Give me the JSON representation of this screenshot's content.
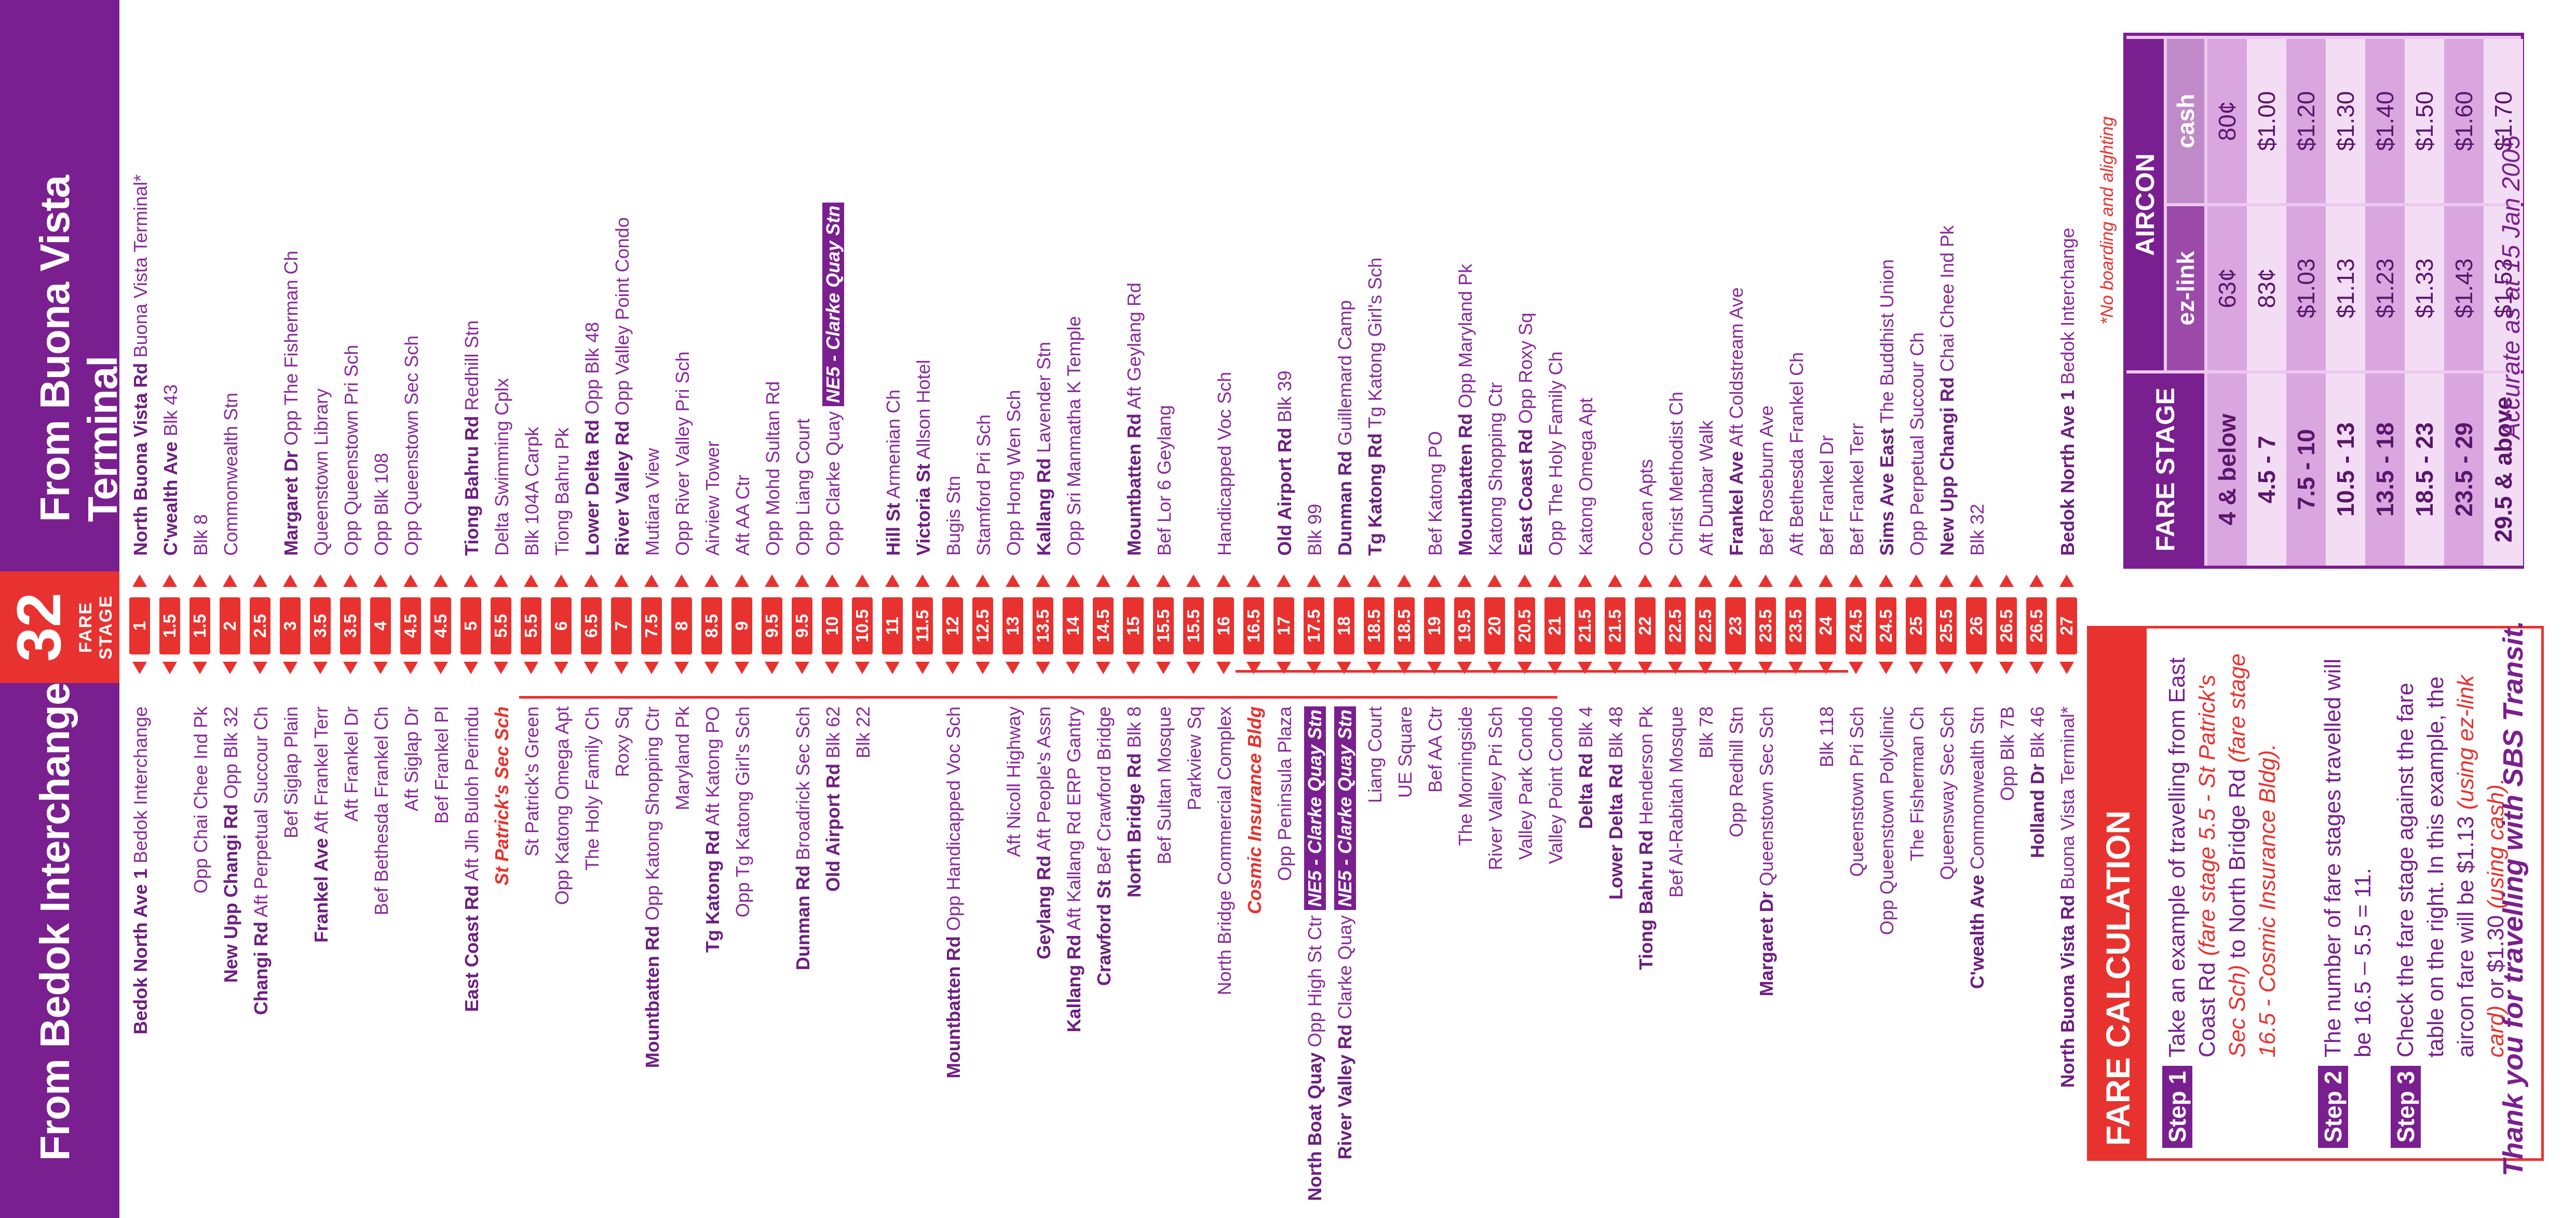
{
  "header": {
    "left_title": "From Bedok Interchange",
    "right_title": "From Buona Vista Terminal",
    "route_number": "32",
    "fare_stage_label": "FARE STAGE"
  },
  "rows": [
    {
      "stage": "1",
      "left": [
        {
          "b": "Bedok North Ave 1"
        },
        {
          "t": " Bedok Interchange"
        }
      ],
      "right": [
        {
          "b": "North Buona Vista Rd"
        },
        {
          "t": " Buona Vista Terminal*"
        }
      ]
    },
    {
      "stage": "1.5",
      "left": [],
      "right": [
        {
          "b": "C'wealth Ave"
        },
        {
          "t": " Blk 43"
        }
      ]
    },
    {
      "stage": "1.5",
      "left": [
        {
          "t": "Opp Chai Chee Ind Pk"
        }
      ],
      "right": [
        {
          "t": "Blk 8"
        }
      ]
    },
    {
      "stage": "2",
      "left": [
        {
          "b": "New Upp Changi Rd"
        },
        {
          "t": " Opp Blk 32"
        }
      ],
      "right": [
        {
          "t": "Commonwealth Stn"
        }
      ]
    },
    {
      "stage": "2.5",
      "left": [
        {
          "b": "Changi Rd"
        },
        {
          "t": " Aft Perpetual Succour Ch"
        }
      ],
      "right": []
    },
    {
      "stage": "3",
      "left": [
        {
          "t": "Bef Siglap Plain"
        }
      ],
      "right": [
        {
          "b": "Margaret Dr"
        },
        {
          "t": " Opp The Fisherman Ch"
        }
      ]
    },
    {
      "stage": "3.5",
      "left": [
        {
          "b": "Frankel Ave"
        },
        {
          "t": " Aft Frankel Terr"
        }
      ],
      "right": [
        {
          "t": "Queenstown Library"
        }
      ]
    },
    {
      "stage": "3.5",
      "left": [
        {
          "t": "Aft Frankel Dr"
        }
      ],
      "right": [
        {
          "t": "Opp Queenstown Pri Sch"
        }
      ]
    },
    {
      "stage": "4",
      "left": [
        {
          "t": "Bef Bethesda Frankel Ch"
        }
      ],
      "right": [
        {
          "t": "Opp Blk 108"
        }
      ]
    },
    {
      "stage": "4.5",
      "left": [
        {
          "t": "Aft Siglap Dr"
        }
      ],
      "right": [
        {
          "t": "Opp Queenstown Sec Sch"
        }
      ]
    },
    {
      "stage": "4.5",
      "left": [
        {
          "t": "Bef Frankel Pl"
        }
      ],
      "right": []
    },
    {
      "stage": "5",
      "left": [
        {
          "b": "East Coast Rd"
        },
        {
          "t": " Aft Jln Buloh Perindu"
        }
      ],
      "right": [
        {
          "b": "Tiong Bahru Rd"
        },
        {
          "t": " Redhill Stn"
        }
      ]
    },
    {
      "stage": "5.5",
      "left": [
        {
          "r": "St Patrick's Sec Sch"
        }
      ],
      "right": [
        {
          "t": "Delta Swimming Cplx"
        }
      ]
    },
    {
      "stage": "5.5",
      "left": [
        {
          "t": "St Patrick's Green"
        }
      ],
      "right": [
        {
          "t": "Blk 104A Carpk"
        }
      ]
    },
    {
      "stage": "6",
      "left": [
        {
          "t": "Opp Katong Omega Apt"
        }
      ],
      "right": [
        {
          "t": "Tiong Bahru Pk"
        }
      ]
    },
    {
      "stage": "6.5",
      "left": [
        {
          "t": "The Holy Family Ch"
        }
      ],
      "right": [
        {
          "b": "Lower Delta Rd"
        },
        {
          "t": " Opp Blk 48"
        }
      ]
    },
    {
      "stage": "7",
      "left": [
        {
          "t": "Roxy Sq"
        }
      ],
      "right": [
        {
          "b": "River Valley Rd"
        },
        {
          "t": " Opp Valley Point Condo"
        }
      ]
    },
    {
      "stage": "7.5",
      "left": [
        {
          "b": "Mountbatten Rd"
        },
        {
          "t": " Opp Katong Shopping Ctr"
        }
      ],
      "right": [
        {
          "t": "Mutiara View"
        }
      ]
    },
    {
      "stage": "8",
      "left": [
        {
          "t": "Maryland Pk"
        }
      ],
      "right": [
        {
          "t": "Opp River Valley Pri Sch"
        }
      ]
    },
    {
      "stage": "8.5",
      "left": [
        {
          "b": "Tg Katong Rd"
        },
        {
          "t": " Aft Katong PO"
        }
      ],
      "right": [
        {
          "t": "Airview Tower"
        }
      ]
    },
    {
      "stage": "9",
      "left": [
        {
          "t": "Opp Tg Katong Girl's Sch"
        }
      ],
      "right": [
        {
          "t": "Aft AA Ctr"
        }
      ]
    },
    {
      "stage": "9.5",
      "left": [],
      "right": [
        {
          "t": "Opp Mohd Sultan Rd"
        }
      ]
    },
    {
      "stage": "9.5",
      "left": [
        {
          "b": "Dunman Rd"
        },
        {
          "t": " Broadrick Sec Sch"
        }
      ],
      "right": [
        {
          "t": "Opp Liang Court"
        }
      ]
    },
    {
      "stage": "10",
      "left": [
        {
          "b": "Old Airport Rd"
        },
        {
          "t": " Blk 62"
        }
      ],
      "right": [
        {
          "t": "Opp Clarke Quay "
        },
        {
          "n": "NE5 - Clarke Quay Stn"
        }
      ]
    },
    {
      "stage": "10.5",
      "left": [
        {
          "t": "Blk 22"
        }
      ],
      "right": []
    },
    {
      "stage": "11",
      "left": [],
      "right": [
        {
          "b": "Hill St"
        },
        {
          "t": " Armenian Ch"
        }
      ]
    },
    {
      "stage": "11.5",
      "left": [],
      "right": [
        {
          "b": "Victoria St"
        },
        {
          "t": " Allson Hotel"
        }
      ]
    },
    {
      "stage": "12",
      "left": [
        {
          "b": "Mountbatten Rd"
        },
        {
          "t": " Opp Handicapped Voc Sch"
        }
      ],
      "right": [
        {
          "t": "Bugis Stn"
        }
      ]
    },
    {
      "stage": "12.5",
      "left": [],
      "right": [
        {
          "t": "Stamford Pri Sch"
        }
      ]
    },
    {
      "stage": "13",
      "left": [
        {
          "t": "Aft Nicoll Highway"
        }
      ],
      "right": [
        {
          "t": "Opp Hong Wen Sch"
        }
      ]
    },
    {
      "stage": "13.5",
      "left": [
        {
          "b": "Geylang Rd"
        },
        {
          "t": " Aft People's Assn"
        }
      ],
      "right": [
        {
          "b": "Kallang Rd"
        },
        {
          "t": " Lavender Stn"
        }
      ]
    },
    {
      "stage": "14",
      "left": [
        {
          "b": "Kallang Rd"
        },
        {
          "t": " Aft Kallang Rd ERP Gantry"
        }
      ],
      "right": [
        {
          "t": "Opp Sri Manmatha K Temple"
        }
      ]
    },
    {
      "stage": "14.5",
      "left": [
        {
          "b": "Crawford St"
        },
        {
          "t": " Bef Crawford Bridge"
        }
      ],
      "right": []
    },
    {
      "stage": "15",
      "left": [
        {
          "b": "North Bridge Rd"
        },
        {
          "t": " Blk 8"
        }
      ],
      "right": [
        {
          "b": "Mountbatten Rd"
        },
        {
          "t": " Aft Geylang Rd"
        }
      ]
    },
    {
      "stage": "15.5",
      "left": [
        {
          "t": "Bef Sultan Mosque"
        }
      ],
      "right": [
        {
          "t": "Bef Lor 6 Geylang"
        }
      ]
    },
    {
      "stage": "15.5",
      "left": [
        {
          "t": "Parkview Sq"
        }
      ],
      "right": []
    },
    {
      "stage": "16",
      "left": [
        {
          "t": "North Bridge Commercial Complex"
        }
      ],
      "right": [
        {
          "t": "Handicapped Voc Sch"
        }
      ]
    },
    {
      "stage": "16.5",
      "left": [
        {
          "r": "Cosmic Insurance Bldg"
        }
      ],
      "right": []
    },
    {
      "stage": "17",
      "left": [
        {
          "t": "Opp Peninsula Plaza"
        }
      ],
      "right": [
        {
          "b": "Old Airport Rd"
        },
        {
          "t": " Blk 39"
        }
      ]
    },
    {
      "stage": "17.5",
      "left": [
        {
          "b": "North Boat Quay"
        },
        {
          "t": " Opp High St Ctr "
        },
        {
          "n": "NE5 - Clarke Quay Stn"
        }
      ],
      "right": [
        {
          "t": "Blk 99"
        }
      ]
    },
    {
      "stage": "18",
      "left": [
        {
          "b": "River Valley Rd"
        },
        {
          "t": " Clarke Quay "
        },
        {
          "n": "NE5 - Clarke Quay Stn"
        }
      ],
      "right": [
        {
          "b": "Dunman Rd"
        },
        {
          "t": " Guillemard Camp"
        }
      ]
    },
    {
      "stage": "18.5",
      "left": [
        {
          "t": "Liang Court"
        }
      ],
      "right": [
        {
          "b": "Tg Katong Rd"
        },
        {
          "t": " Tg Katong Girl's Sch"
        }
      ]
    },
    {
      "stage": "18.5",
      "left": [
        {
          "t": "UE Square"
        }
      ],
      "right": []
    },
    {
      "stage": "19",
      "left": [
        {
          "t": "Bef AA Ctr"
        }
      ],
      "right": [
        {
          "t": "Bef Katong PO"
        }
      ]
    },
    {
      "stage": "19.5",
      "left": [
        {
          "t": "The Morningside"
        }
      ],
      "right": [
        {
          "b": "Mountbatten Rd"
        },
        {
          "t": " Opp Maryland Pk"
        }
      ]
    },
    {
      "stage": "20",
      "left": [
        {
          "t": "River Valley Pri Sch"
        }
      ],
      "right": [
        {
          "t": "Katong Shopping Ctr"
        }
      ]
    },
    {
      "stage": "20.5",
      "left": [
        {
          "t": "Valley Park Condo"
        }
      ],
      "right": [
        {
          "b": "East Coast Rd"
        },
        {
          "t": " Opp Roxy Sq"
        }
      ]
    },
    {
      "stage": "21",
      "left": [
        {
          "t": "Valley Point Condo"
        }
      ],
      "right": [
        {
          "t": "Opp The Holy Family Ch"
        }
      ]
    },
    {
      "stage": "21.5",
      "left": [
        {
          "b": "Delta Rd"
        },
        {
          "t": " Blk 4"
        }
      ],
      "right": [
        {
          "t": "Katong Omega Apt"
        }
      ]
    },
    {
      "stage": "21.5",
      "left": [
        {
          "b": "Lower Delta Rd"
        },
        {
          "t": " Blk 48"
        }
      ],
      "right": []
    },
    {
      "stage": "22",
      "left": [
        {
          "b": "Tiong Bahru Rd"
        },
        {
          "t": " Henderson Pk"
        }
      ],
      "right": [
        {
          "t": "Ocean Apts"
        }
      ]
    },
    {
      "stage": "22.5",
      "left": [
        {
          "t": "Bef Al-Rabitah Mosque"
        }
      ],
      "right": [
        {
          "t": "Christ Methodist Ch"
        }
      ]
    },
    {
      "stage": "22.5",
      "left": [
        {
          "t": "Blk 78"
        }
      ],
      "right": [
        {
          "t": "Aft Dunbar Walk"
        }
      ]
    },
    {
      "stage": "23",
      "left": [
        {
          "t": "Opp Redhill Stn"
        }
      ],
      "right": [
        {
          "b": "Frankel Ave"
        },
        {
          "t": " Aft Coldstream Ave"
        }
      ]
    },
    {
      "stage": "23.5",
      "left": [
        {
          "b": "Margaret Dr"
        },
        {
          "t": " Queenstown Sec Sch"
        }
      ],
      "right": [
        {
          "t": "Bef Roseburn Ave"
        }
      ]
    },
    {
      "stage": "23.5",
      "left": [],
      "right": [
        {
          "t": "Aft Bethesda Frankel Ch"
        }
      ]
    },
    {
      "stage": "24",
      "left": [
        {
          "t": "Blk 118"
        }
      ],
      "right": [
        {
          "t": "Bef Frankel Dr"
        }
      ]
    },
    {
      "stage": "24.5",
      "left": [
        {
          "t": "Queenstown Pri Sch"
        }
      ],
      "right": [
        {
          "t": "Bef Frankel Terr"
        }
      ]
    },
    {
      "stage": "24.5",
      "left": [
        {
          "t": "Opp Queenstown Polyclinic"
        }
      ],
      "right": [
        {
          "b": "Sims Ave East"
        },
        {
          "t": " The Buddhist Union"
        }
      ]
    },
    {
      "stage": "25",
      "left": [
        {
          "t": "The Fisherman Ch"
        }
      ],
      "right": [
        {
          "t": "Opp Perpetual Succour Ch"
        }
      ]
    },
    {
      "stage": "25.5",
      "left": [
        {
          "t": "Queensway Sec Sch"
        }
      ],
      "right": [
        {
          "b": "New Upp Changi Rd"
        },
        {
          "t": " Chai Chee Ind Pk"
        }
      ]
    },
    {
      "stage": "26",
      "left": [
        {
          "b": "C'wealth Ave"
        },
        {
          "t": " Commonwealth Stn"
        }
      ],
      "right": [
        {
          "t": "Blk 32"
        }
      ]
    },
    {
      "stage": "26.5",
      "left": [
        {
          "t": "Opp Blk 7B"
        }
      ],
      "right": []
    },
    {
      "stage": "26.5",
      "left": [
        {
          "b": "Holland Dr"
        },
        {
          "t": " Blk 46"
        }
      ],
      "right": []
    },
    {
      "stage": "27",
      "left": [
        {
          "b": "North Buona Vista Rd"
        },
        {
          "t": " Buona Vista Terminal*"
        }
      ],
      "right": [
        {
          "b": "Bedok North Ave 1"
        },
        {
          "t": " Bedok Interchange"
        }
      ]
    }
  ],
  "fare_calc": {
    "title": "FARE CALCULATION",
    "step1_label": "Step 1",
    "step1_text_a": "Take an example of travelling from East Coast Rd ",
    "step1_text_b": "(fare stage 5.5 - St Patrick's Sec Sch)",
    "step1_text_c": " to North Bridge Rd ",
    "step1_text_d": "(fare stage 16.5 - Cosmic Insurance Bldg).",
    "step2_label": "Step 2",
    "step2_text": "The number of fare stages travelled will be 16.5 – 5.5 = 11.",
    "step3_label": "Step 3",
    "step3_text_a": "Check the fare stage against the fare table on the right. In this example, the aircon fare will be $1.13 ",
    "step3_text_b": "(using ez-link card)",
    "step3_text_c": " or $1.30 ",
    "step3_text_d": "(using cash)."
  },
  "fare_table": {
    "col_stage": "FARE STAGE",
    "col_aircon": "AIRCON",
    "col_ezlink": "ez-link",
    "col_cash": "cash",
    "rows": [
      {
        "stage": "4 & below",
        "ez": "63¢",
        "cash": "80¢"
      },
      {
        "stage": "4.5 - 7",
        "ez": "83¢",
        "cash": "$1.00"
      },
      {
        "stage": "7.5 - 10",
        "ez": "$1.03",
        "cash": "$1.20"
      },
      {
        "stage": "10.5 - 13",
        "ez": "$1.13",
        "cash": "$1.30"
      },
      {
        "stage": "13.5 - 18",
        "ez": "$1.23",
        "cash": "$1.40"
      },
      {
        "stage": "18.5 - 23",
        "ez": "$1.33",
        "cash": "$1.50"
      },
      {
        "stage": "23.5 - 29",
        "ez": "$1.43",
        "cash": "$1.60"
      },
      {
        "stage": "29.5 & above",
        "ez": "$1.53",
        "cash": "$1.70"
      }
    ]
  },
  "notes": {
    "no_boarding": "*No boarding and alighting",
    "thanks": "Thank you for travelling with SBS Transit.",
    "accurate": "Accurate as at 15 Jan 2005"
  },
  "colors": {
    "purple": "#7a1f8f",
    "red": "#e8322f",
    "light_purple": "#ecc8ef"
  }
}
